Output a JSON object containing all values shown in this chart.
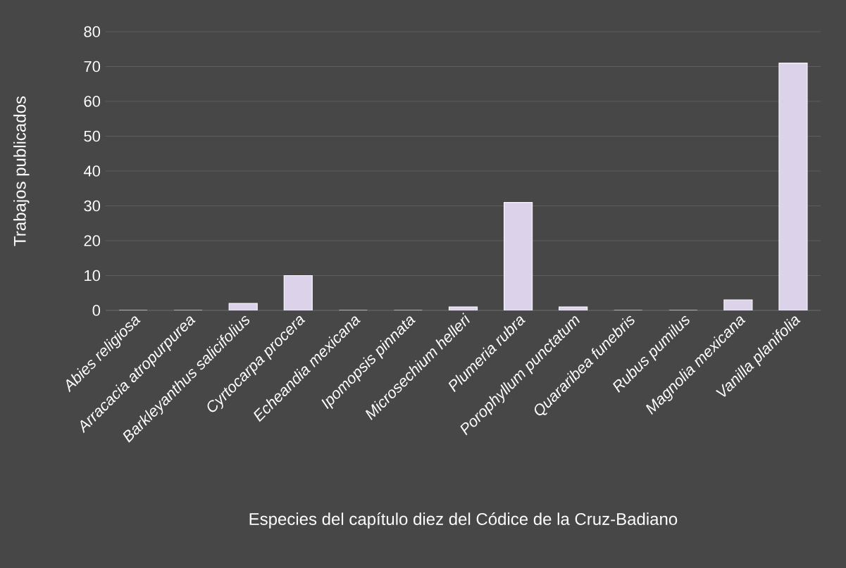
{
  "chart_data": {
    "type": "bar",
    "xlabel": "Especies del capítulo diez del Códice de la Cruz-Badiano",
    "ylabel": "Trabajos publicados",
    "categories": [
      "Abies religiosa",
      "Arracacia atropurpurea",
      "Barkleyanthus salicifolius",
      "Cyrtocarpa procera",
      "Echeandia mexicana",
      "Ipomopsis pinnata",
      "Microsechium helleri",
      "Plumeria rubra",
      "Porophyllum punctatum",
      "Quararibea funebris",
      "Rubus pumilus",
      "Magnolia mexicana",
      "Vanilla planifolia"
    ],
    "values": [
      0,
      0,
      2,
      10,
      0,
      0,
      1,
      31,
      1,
      0,
      0,
      3,
      71
    ],
    "color": "#dcd3ea",
    "ylim": [
      0,
      80
    ],
    "yticks": [
      0,
      10,
      20,
      30,
      40,
      50,
      60,
      70,
      80
    ],
    "grid": "y"
  }
}
